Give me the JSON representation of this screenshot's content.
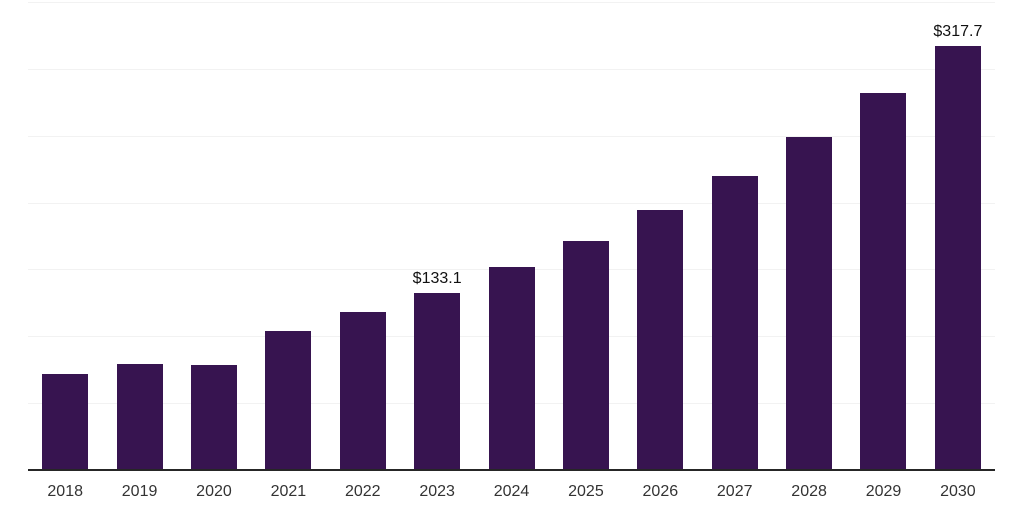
{
  "chart_data": {
    "type": "bar",
    "title": "",
    "xlabel": "",
    "ylabel": "",
    "categories": [
      "2018",
      "2019",
      "2020",
      "2021",
      "2022",
      "2023",
      "2024",
      "2025",
      "2026",
      "2027",
      "2028",
      "2029",
      "2030"
    ],
    "values": [
      72.5,
      80.0,
      79.3,
      104.7,
      118.9,
      133.1,
      152.6,
      172.0,
      195.2,
      220.6,
      249.8,
      282.7,
      317.7
    ],
    "value_labels": [
      "",
      "",
      "",
      "",
      "",
      "$133.1",
      "",
      "",
      "",
      "",
      "",
      "",
      "$317.7"
    ],
    "ylim": [
      0,
      350
    ],
    "gridline_step": 50,
    "grid_visible": true,
    "y_tick_labels_visible": false,
    "legend_visible": false,
    "colors": {
      "bar": "#371450",
      "gridline": "#f2f2f2",
      "axis_line": "#262626",
      "value_label_text": "#111111",
      "tick_label_text": "#333333",
      "background": "#ffffff"
    }
  }
}
